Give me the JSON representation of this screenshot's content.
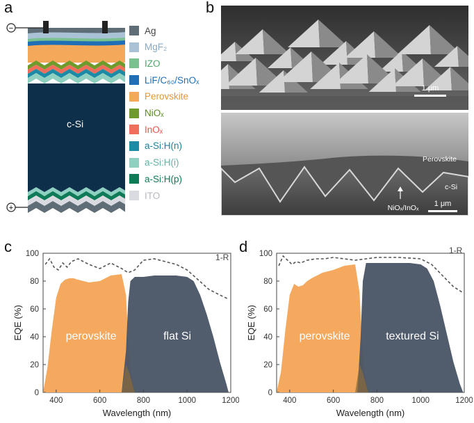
{
  "panel_labels": [
    "a",
    "b",
    "c",
    "d"
  ],
  "panel_a": {
    "bulk_label": "c-Si",
    "legend": [
      {
        "label": "Ag",
        "color": "#5f6e76",
        "text_color": "#444444"
      },
      {
        "label": "MgF₂",
        "color": "#a9c2d6",
        "text_color": "#8aa9c0"
      },
      {
        "label": "IZO",
        "color": "#79c28f",
        "text_color": "#4fa66c"
      },
      {
        "label": "LiF/C₆₀/SnOₓ",
        "color": "#1e6fb5",
        "text_color": "#1e6fb5"
      },
      {
        "label": "Perovskite",
        "color": "#f4a85a",
        "text_color": "#e3963d"
      },
      {
        "label": "NiOₓ",
        "color": "#6f9a2c",
        "text_color": "#5c8a22"
      },
      {
        "label": "InOₓ",
        "color": "#ef6f5b",
        "text_color": "#e4584a"
      },
      {
        "label": "a-Si:H(n)",
        "color": "#1d8aa6",
        "text_color": "#1d7f99"
      },
      {
        "label": "a-Si:H(i)",
        "color": "#8fd0c0",
        "text_color": "#5fb3a3"
      },
      {
        "label": "a-Si:H(p)",
        "color": "#0f7a56",
        "text_color": "#0f7a56"
      },
      {
        "label": "ITO",
        "color": "#d9dbe0",
        "text_color": "#b5b8bf"
      }
    ],
    "terminal_minus": "−",
    "terminal_plus": "+"
  },
  "panel_b": {
    "scale_top": "1 μm",
    "scale_bottom": "1 μm",
    "label_perovskite": "Perovskite",
    "label_csi": "c-Si",
    "label_interface": "NiOₓ/InOₓ"
  },
  "chart_data": [
    {
      "type": "area",
      "panel": "c",
      "xlabel": "Wavelength (nm)",
      "ylabel": "EQE (%)",
      "xlim": [
        340,
        1200
      ],
      "ylim": [
        0,
        100
      ],
      "xticks": [
        400,
        600,
        800,
        1000,
        1200
      ],
      "yticks": [
        0,
        20,
        40,
        60,
        80,
        100
      ],
      "series": [
        {
          "name": "perovskite",
          "color": "#f4a95e",
          "x": [
            340,
            360,
            380,
            400,
            420,
            440,
            460,
            480,
            500,
            550,
            600,
            650,
            700,
            720,
            730,
            740,
            760
          ],
          "y": [
            0,
            18,
            45,
            68,
            78,
            81,
            82,
            82,
            81,
            79,
            80,
            84,
            85,
            70,
            40,
            15,
            0
          ]
        },
        {
          "name": "flat Si",
          "color": "#4a5566",
          "x": [
            700,
            720,
            730,
            740,
            760,
            800,
            850,
            900,
            950,
            1000,
            1030,
            1060,
            1090,
            1120,
            1150,
            1180,
            1190
          ],
          "y": [
            0,
            30,
            65,
            80,
            83,
            83,
            84,
            84,
            84,
            83,
            80,
            70,
            56,
            40,
            22,
            6,
            0
          ]
        }
      ],
      "line": {
        "name": "1-R",
        "style": "dashed",
        "x": [
          350,
          370,
          390,
          410,
          430,
          450,
          470,
          500,
          550,
          600,
          650,
          700,
          730,
          760,
          800,
          850,
          900,
          950,
          1000,
          1050,
          1100,
          1150,
          1190
        ],
        "y": [
          92,
          96,
          90,
          88,
          93,
          90,
          94,
          96,
          92,
          89,
          93,
          89,
          86,
          88,
          95,
          96,
          94,
          92,
          88,
          81,
          74,
          70,
          67
        ]
      }
    },
    {
      "type": "area",
      "panel": "d",
      "xlabel": "Wavelength (nm)",
      "ylabel": "EQE (%)",
      "xlim": [
        340,
        1200
      ],
      "ylim": [
        0,
        100
      ],
      "xticks": [
        400,
        600,
        800,
        1000,
        1200
      ],
      "yticks": [
        0,
        20,
        40,
        60,
        80,
        100
      ],
      "series": [
        {
          "name": "perovskite",
          "color": "#f4a95e",
          "x": [
            340,
            360,
            380,
            400,
            420,
            440,
            460,
            480,
            500,
            550,
            600,
            650,
            700,
            720,
            730,
            740,
            760
          ],
          "y": [
            0,
            15,
            45,
            70,
            78,
            76,
            77,
            80,
            82,
            86,
            88,
            91,
            92,
            72,
            42,
            15,
            0
          ]
        },
        {
          "name": "textured Si",
          "color": "#4a5566",
          "x": [
            710,
            725,
            735,
            750,
            780,
            850,
            900,
            950,
            1000,
            1030,
            1060,
            1090,
            1120,
            1150,
            1180,
            1195
          ],
          "y": [
            0,
            40,
            80,
            93,
            93,
            93,
            93,
            93,
            92,
            89,
            80,
            62,
            42,
            22,
            6,
            0
          ]
        }
      ],
      "line": {
        "name": "1-R",
        "style": "dashed",
        "x": [
          350,
          370,
          390,
          410,
          430,
          450,
          480,
          520,
          560,
          600,
          650,
          700,
          750,
          800,
          900,
          1000,
          1050,
          1100,
          1150,
          1190
        ],
        "y": [
          91,
          98,
          95,
          92,
          94,
          93,
          95,
          96,
          96,
          97,
          96,
          95,
          96,
          97,
          97,
          96,
          92,
          84,
          76,
          72
        ]
      }
    }
  ]
}
